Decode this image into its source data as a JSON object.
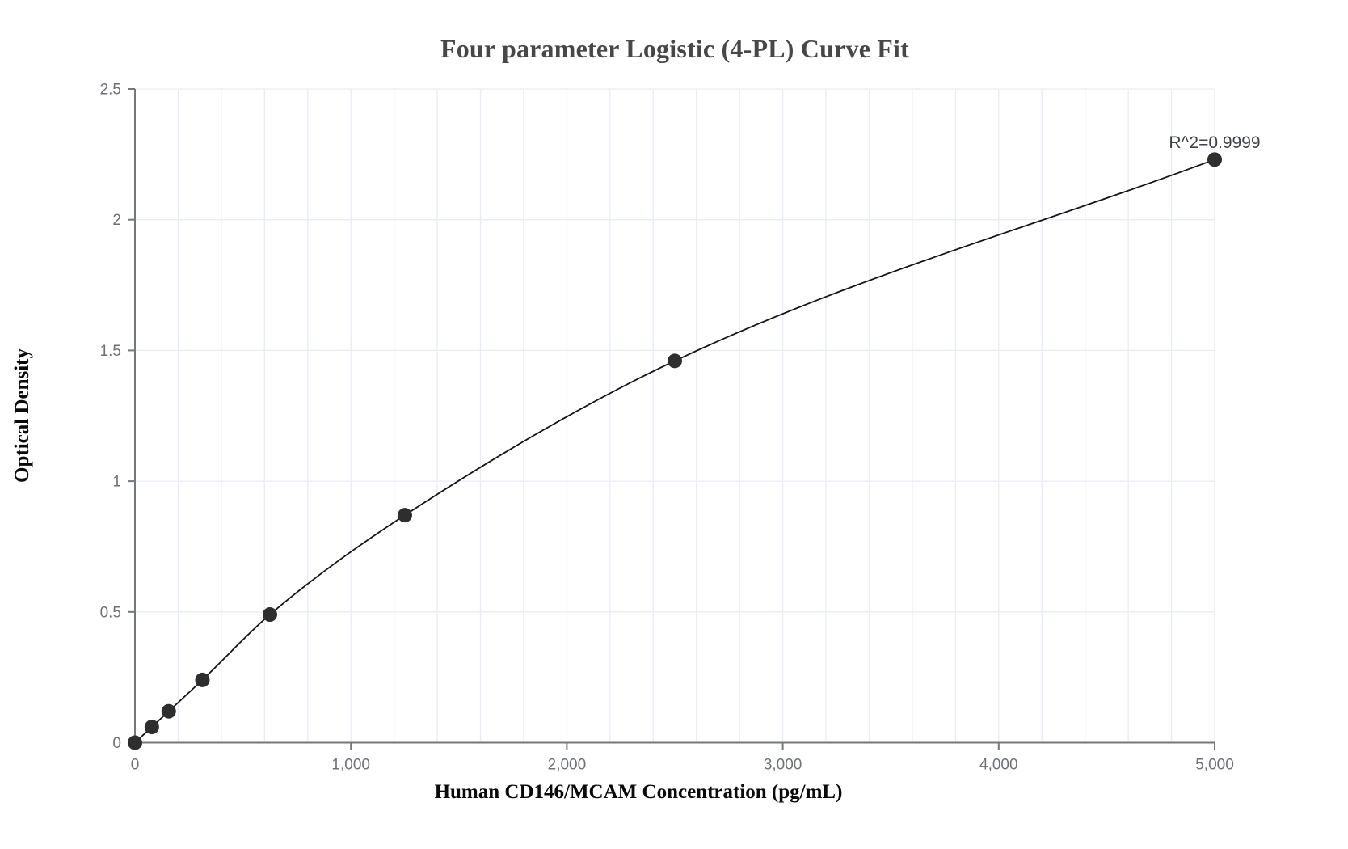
{
  "chart_data": {
    "type": "scatter",
    "title": "Four parameter Logistic (4-PL) Curve Fit",
    "xlabel": "Human CD146/MCAM Concentration (pg/mL)",
    "ylabel": "Optical Density",
    "annotation": "R^2=0.9999",
    "series": [
      {
        "name": "4-PL standard curve",
        "x": [
          0,
          78.1,
          156.3,
          312.5,
          625,
          1250,
          2500,
          5000
        ],
        "y": [
          0.0,
          0.06,
          0.12,
          0.24,
          0.49,
          0.87,
          1.46,
          2.23
        ]
      }
    ],
    "fit_line": "smooth 4-PL curve through all points, from first to last point",
    "xlim": [
      0,
      5000
    ],
    "ylim": [
      0,
      2.5
    ],
    "x_ticks": [
      0,
      1000,
      2000,
      3000,
      4000,
      5000
    ],
    "x_tick_labels": [
      "0",
      "1,000",
      "2,000",
      "3,000",
      "4,000",
      "5,000"
    ],
    "y_ticks": [
      0,
      0.5,
      1,
      1.5,
      2,
      2.5
    ],
    "y_tick_labels": [
      "0",
      "0.5",
      "1",
      "1.5",
      "2",
      "2.5"
    ],
    "x_minor_grid_step": 200,
    "grid": true,
    "legend": "none",
    "colors": {
      "point": "#2e2e2e",
      "curve": "#141414",
      "grid": "#e8ecf7",
      "axis": "#74787d",
      "tick_label": "#6d7177",
      "title": "#474747",
      "axis_label": "#0a0a0a",
      "annotation": "#3e4247"
    }
  }
}
